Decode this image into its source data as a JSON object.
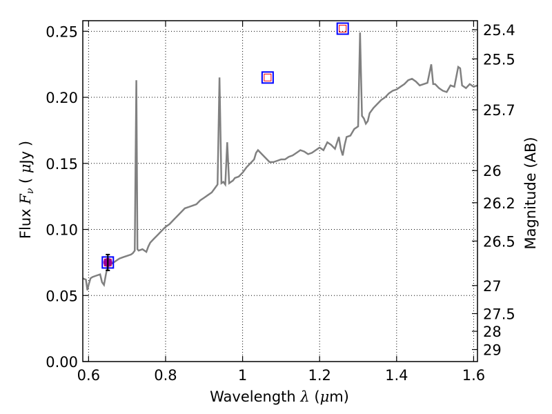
{
  "chart_data": {
    "type": "line",
    "title": "",
    "xlabel": "Wavelength  λ (μm)",
    "ylabel": "Flux  Fν  ( μJy )",
    "y2label": "Magnitude (AB)",
    "xlim": [
      0.585,
      1.61
    ],
    "ylim": [
      0.0,
      0.258
    ],
    "grid": true,
    "x_ticks": [
      0.6,
      0.8,
      1.0,
      1.2,
      1.4,
      1.6
    ],
    "x_tick_labels": [
      "0.6",
      "0.8",
      "1",
      "1.2",
      "1.4",
      "1.6"
    ],
    "y_ticks": [
      0.0,
      0.05,
      0.1,
      0.15,
      0.2,
      0.25
    ],
    "y_tick_labels": [
      "0.00",
      "0.05",
      "0.10",
      "0.15",
      "0.20",
      "0.25"
    ],
    "mag_ticks": [
      25.4,
      25.5,
      25.7,
      26,
      26.2,
      26.5,
      27,
      27.5,
      28,
      29
    ],
    "mag_tick_labels": [
      "25.4",
      "25.5",
      "25.7",
      "26",
      "26.2",
      "26.5",
      "27",
      "27.5",
      "28",
      "29"
    ],
    "colors": {
      "spectrum": "#808080",
      "model_box": "#0000ff",
      "model_inner": "#ff0000",
      "observed": "#990099",
      "grid": "#000000"
    },
    "series": [
      {
        "type": "line",
        "x": [
          0.585,
          0.593,
          0.597,
          0.6,
          0.605,
          0.61,
          0.62,
          0.63,
          0.635,
          0.64,
          0.645,
          0.65,
          0.66,
          0.67,
          0.68,
          0.69,
          0.7,
          0.71,
          0.715,
          0.72,
          0.724,
          0.727,
          0.73,
          0.74,
          0.75,
          0.755,
          0.76,
          0.77,
          0.78,
          0.79,
          0.8,
          0.81,
          0.82,
          0.83,
          0.84,
          0.85,
          0.86,
          0.87,
          0.88,
          0.89,
          0.9,
          0.91,
          0.92,
          0.93,
          0.935,
          0.94,
          0.945,
          0.95,
          0.955,
          0.96,
          0.965,
          0.97,
          0.975,
          0.98,
          0.99,
          1.0,
          1.01,
          1.02,
          1.03,
          1.035,
          1.04,
          1.05,
          1.06,
          1.07,
          1.08,
          1.09,
          1.1,
          1.11,
          1.12,
          1.13,
          1.14,
          1.15,
          1.16,
          1.17,
          1.18,
          1.19,
          1.2,
          1.21,
          1.22,
          1.23,
          1.24,
          1.25,
          1.255,
          1.26,
          1.265,
          1.27,
          1.28,
          1.29,
          1.3,
          1.305,
          1.31,
          1.315,
          1.32,
          1.325,
          1.33,
          1.34,
          1.35,
          1.36,
          1.37,
          1.38,
          1.39,
          1.4,
          1.41,
          1.42,
          1.43,
          1.44,
          1.45,
          1.46,
          1.47,
          1.48,
          1.49,
          1.495,
          1.5,
          1.51,
          1.52,
          1.53,
          1.54,
          1.55,
          1.56,
          1.565,
          1.57,
          1.58,
          1.59,
          1.6,
          1.61
        ],
        "y": [
          0.063,
          0.062,
          0.054,
          0.058,
          0.063,
          0.064,
          0.065,
          0.066,
          0.06,
          0.058,
          0.066,
          0.073,
          0.074,
          0.076,
          0.078,
          0.079,
          0.08,
          0.081,
          0.082,
          0.084,
          0.213,
          0.085,
          0.084,
          0.085,
          0.083,
          0.087,
          0.09,
          0.093,
          0.096,
          0.099,
          0.102,
          0.104,
          0.107,
          0.11,
          0.113,
          0.116,
          0.117,
          0.118,
          0.119,
          0.122,
          0.124,
          0.126,
          0.128,
          0.132,
          0.134,
          0.215,
          0.135,
          0.136,
          0.134,
          0.166,
          0.135,
          0.136,
          0.137,
          0.139,
          0.14,
          0.143,
          0.147,
          0.15,
          0.153,
          0.158,
          0.16,
          0.157,
          0.154,
          0.151,
          0.151,
          0.152,
          0.153,
          0.153,
          0.155,
          0.156,
          0.158,
          0.16,
          0.159,
          0.157,
          0.158,
          0.16,
          0.162,
          0.16,
          0.166,
          0.164,
          0.161,
          0.17,
          0.161,
          0.156,
          0.164,
          0.17,
          0.171,
          0.176,
          0.178,
          0.249,
          0.186,
          0.184,
          0.18,
          0.182,
          0.188,
          0.192,
          0.195,
          0.198,
          0.2,
          0.203,
          0.205,
          0.206,
          0.208,
          0.21,
          0.213,
          0.214,
          0.212,
          0.209,
          0.21,
          0.211,
          0.225,
          0.21,
          0.21,
          0.207,
          0.205,
          0.204,
          0.209,
          0.208,
          0.223,
          0.222,
          0.209,
          0.207,
          0.21,
          0.208,
          0.209
        ]
      },
      {
        "type": "model_photometry",
        "x": [
          0.65,
          1.065,
          1.26
        ],
        "y": [
          0.075,
          0.215,
          0.252
        ]
      },
      {
        "type": "observed_photometry",
        "x": [
          0.65
        ],
        "y": [
          0.075
        ],
        "yerr": [
          0.006
        ]
      }
    ]
  }
}
